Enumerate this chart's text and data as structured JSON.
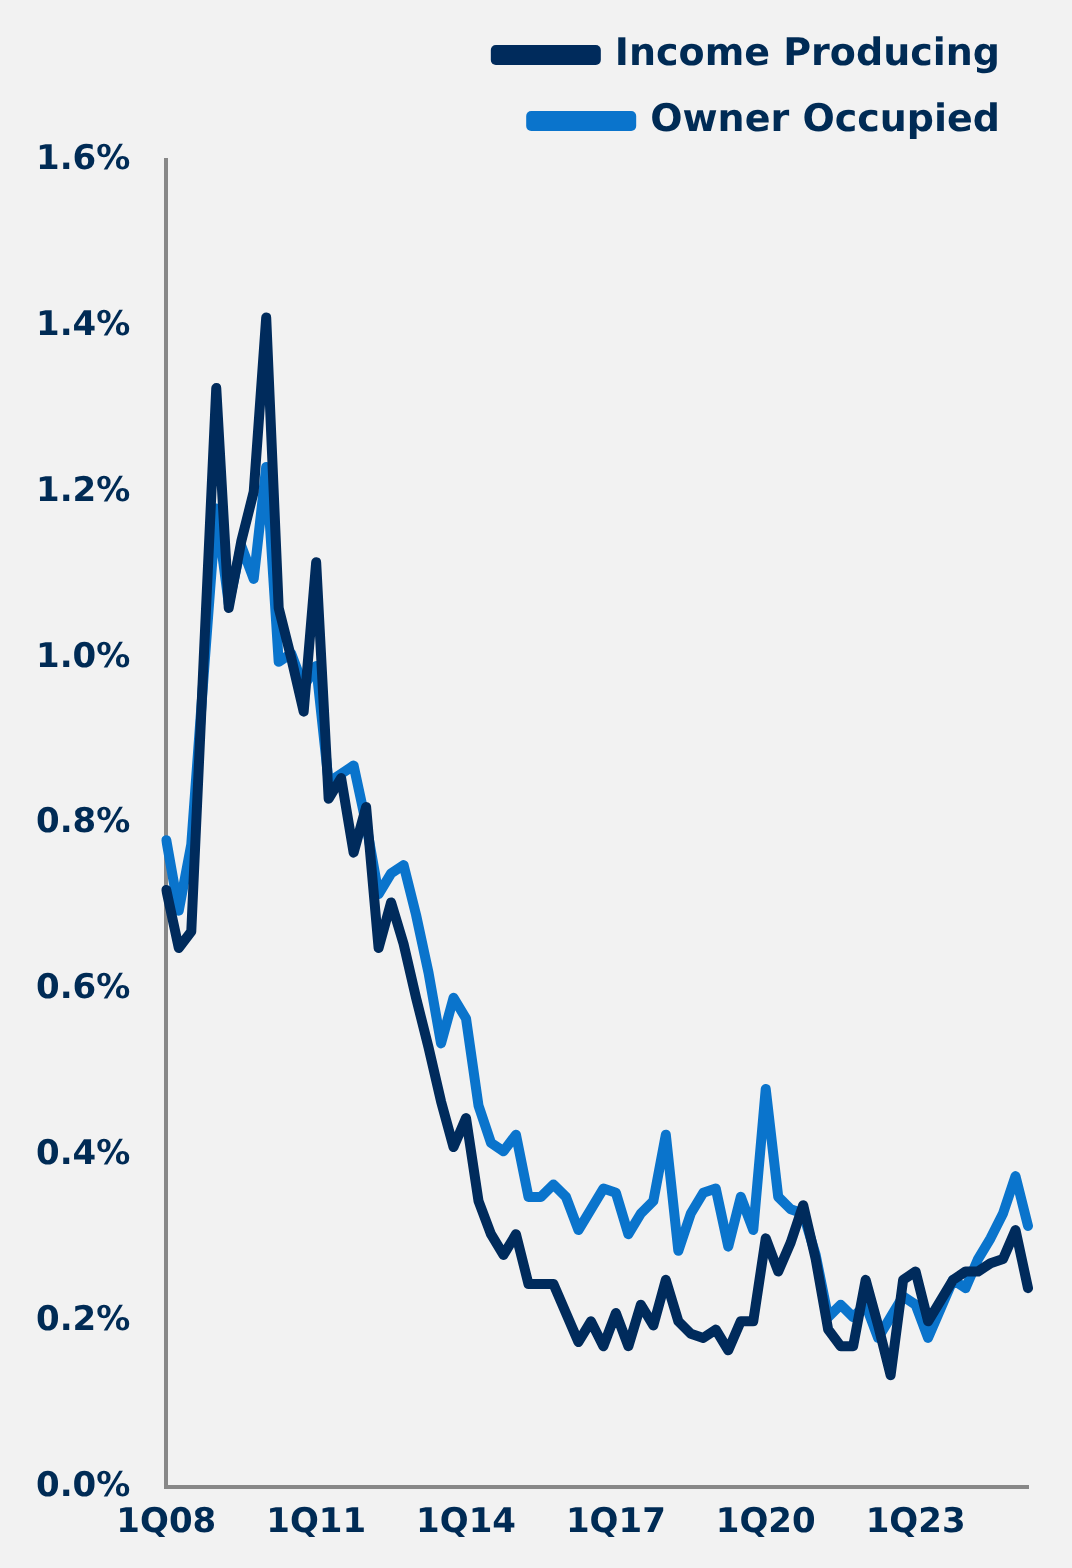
{
  "chart_data": {
    "type": "line",
    "categories": [
      "1Q08",
      null,
      null,
      null,
      null,
      null,
      null,
      null,
      null,
      null,
      null,
      null,
      "1Q11",
      null,
      null,
      null,
      null,
      null,
      null,
      null,
      null,
      null,
      null,
      null,
      "1Q14",
      null,
      null,
      null,
      null,
      null,
      null,
      null,
      null,
      null,
      null,
      null,
      "1Q17",
      null,
      null,
      null,
      null,
      null,
      null,
      null,
      null,
      null,
      null,
      null,
      "1Q20",
      null,
      null,
      null,
      null,
      null,
      null,
      null,
      null,
      null,
      null,
      null,
      "1Q23",
      null,
      null,
      null,
      null,
      null,
      null,
      null,
      null,
      null
    ],
    "series": [
      {
        "name": "Income Producing",
        "color": "#002b5c",
        "values": [
          0.72,
          0.65,
          0.67,
          1.0,
          1.325,
          1.06,
          1.14,
          1.2,
          1.41,
          1.06,
          1.0,
          0.935,
          1.115,
          0.83,
          0.855,
          0.765,
          0.82,
          0.65,
          0.705,
          0.655,
          0.59,
          0.53,
          0.465,
          0.41,
          0.445,
          0.345,
          0.305,
          0.28,
          0.305,
          0.245,
          0.245,
          0.245,
          0.21,
          0.175,
          0.2,
          0.17,
          0.21,
          0.17,
          0.22,
          0.195,
          0.25,
          0.2,
          0.185,
          0.18,
          0.19,
          0.165,
          0.2,
          0.2,
          0.3,
          0.26,
          0.295,
          0.34,
          0.275,
          0.19,
          0.17,
          0.17,
          0.25,
          0.195,
          0.135,
          0.25,
          0.26,
          0.2,
          0.225,
          0.25,
          0.26,
          0.26,
          0.27,
          0.275,
          0.31,
          0.24
        ]
      },
      {
        "name": "Owner Occupied",
        "color": "#0a74cc",
        "values": [
          0.78,
          0.695,
          0.775,
          0.98,
          1.18,
          1.065,
          1.135,
          1.095,
          1.23,
          0.995,
          1.005,
          0.965,
          0.99,
          0.85,
          0.86,
          0.87,
          0.8,
          0.715,
          0.74,
          0.75,
          0.69,
          0.62,
          0.535,
          0.59,
          0.565,
          0.46,
          0.415,
          0.405,
          0.425,
          0.35,
          0.35,
          0.365,
          0.35,
          0.31,
          0.335,
          0.36,
          0.355,
          0.305,
          0.33,
          0.345,
          0.425,
          0.285,
          0.33,
          0.355,
          0.36,
          0.29,
          0.35,
          0.31,
          0.48,
          0.35,
          0.335,
          0.33,
          0.28,
          0.205,
          0.22,
          0.205,
          0.22,
          0.18,
          0.205,
          0.23,
          0.22,
          0.18,
          0.215,
          0.25,
          0.24,
          0.275,
          0.3,
          0.33,
          0.375,
          0.315
        ]
      }
    ],
    "ylim": [
      0,
      1.6
    ],
    "yticks": [
      {
        "value": 0,
        "label": "0.0%"
      },
      {
        "value": 0.2,
        "label": "0.2%"
      },
      {
        "value": 0.4,
        "label": "0.4%"
      },
      {
        "value": 0.6,
        "label": "0.6%"
      },
      {
        "value": 0.8,
        "label": "0.8%"
      },
      {
        "value": 1.0,
        "label": "1.0%"
      },
      {
        "value": 1.2,
        "label": "1.2%"
      },
      {
        "value": 1.4,
        "label": "1.4%"
      },
      {
        "value": 1.6,
        "label": "1.6%"
      }
    ],
    "grid": false,
    "legend": "top",
    "marker": "none",
    "line_style": "solid"
  }
}
